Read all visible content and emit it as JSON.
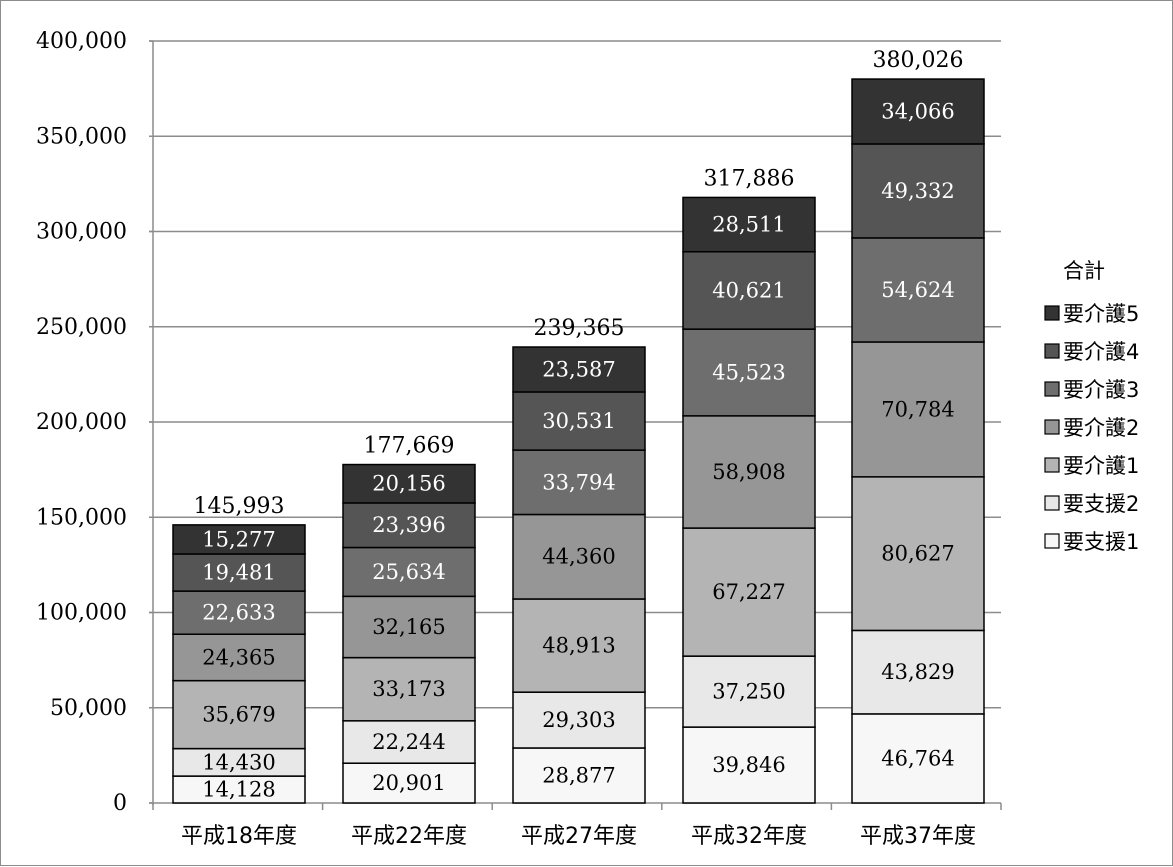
{
  "chart_data": {
    "type": "bar",
    "stacked": true,
    "categories": [
      "平成18年度",
      "平成22年度",
      "平成27年度",
      "平成32年度",
      "平成37年度"
    ],
    "series": [
      {
        "name": "要支援1",
        "color": "#f7f7f7",
        "label_color": "#000000",
        "values": [
          14128,
          20901,
          28877,
          39846,
          46764
        ]
      },
      {
        "name": "要支援2",
        "color": "#e8e8e8",
        "label_color": "#000000",
        "values": [
          14430,
          22244,
          29303,
          37250,
          43829
        ]
      },
      {
        "name": "要介護1",
        "color": "#b4b4b4",
        "label_color": "#000000",
        "values": [
          35679,
          33173,
          48913,
          67227,
          80627
        ]
      },
      {
        "name": "要介護2",
        "color": "#969696",
        "label_color": "#000000",
        "values": [
          24365,
          32165,
          44360,
          58908,
          70784
        ]
      },
      {
        "name": "要介護3",
        "color": "#6e6e6e",
        "label_color": "#ffffff",
        "values": [
          22633,
          25634,
          33794,
          45523,
          54624
        ]
      },
      {
        "name": "要介護4",
        "color": "#555555",
        "label_color": "#ffffff",
        "values": [
          19481,
          23396,
          30531,
          40621,
          49332
        ]
      },
      {
        "name": "要介護5",
        "color": "#333333",
        "label_color": "#ffffff",
        "values": [
          15277,
          20156,
          23587,
          28511,
          34066
        ]
      }
    ],
    "segment_labels": [
      [
        "14,128",
        "14,430",
        "35,679",
        "24,365",
        "22,633",
        "19,481",
        "15,277"
      ],
      [
        "20,901",
        "22,244",
        "33,173",
        "32,165",
        "25,634",
        "23,396",
        "20,156"
      ],
      [
        "28,877",
        "29,303",
        "48,913",
        "44,360",
        "33,794",
        "30,531",
        "23,587"
      ],
      [
        "39,846",
        "37,250",
        "67,227",
        "58,908",
        "45,523",
        "40,621",
        "28,511"
      ],
      [
        "46,764",
        "43,829",
        "80,627",
        "70,784",
        "54,624",
        "49,332",
        "34,066"
      ]
    ],
    "totals": [
      145993,
      177669,
      239365,
      317886,
      380026
    ],
    "total_labels": [
      "145,993",
      "177,669",
      "239,365",
      "317,886",
      "380,026"
    ],
    "ylim": [
      0,
      400000
    ],
    "y_ticks": [
      "0",
      "50,000",
      "100,000",
      "150,000",
      "200,000",
      "250,000",
      "300,000",
      "350,000",
      "400,000"
    ],
    "grid": true,
    "legend_position": "right",
    "legend_title": "合計",
    "legend_order": [
      "要介護5",
      "要介護4",
      "要介護3",
      "要介護2",
      "要介護1",
      "要支援2",
      "要支援1"
    ],
    "title": "",
    "xlabel": "",
    "ylabel": ""
  }
}
